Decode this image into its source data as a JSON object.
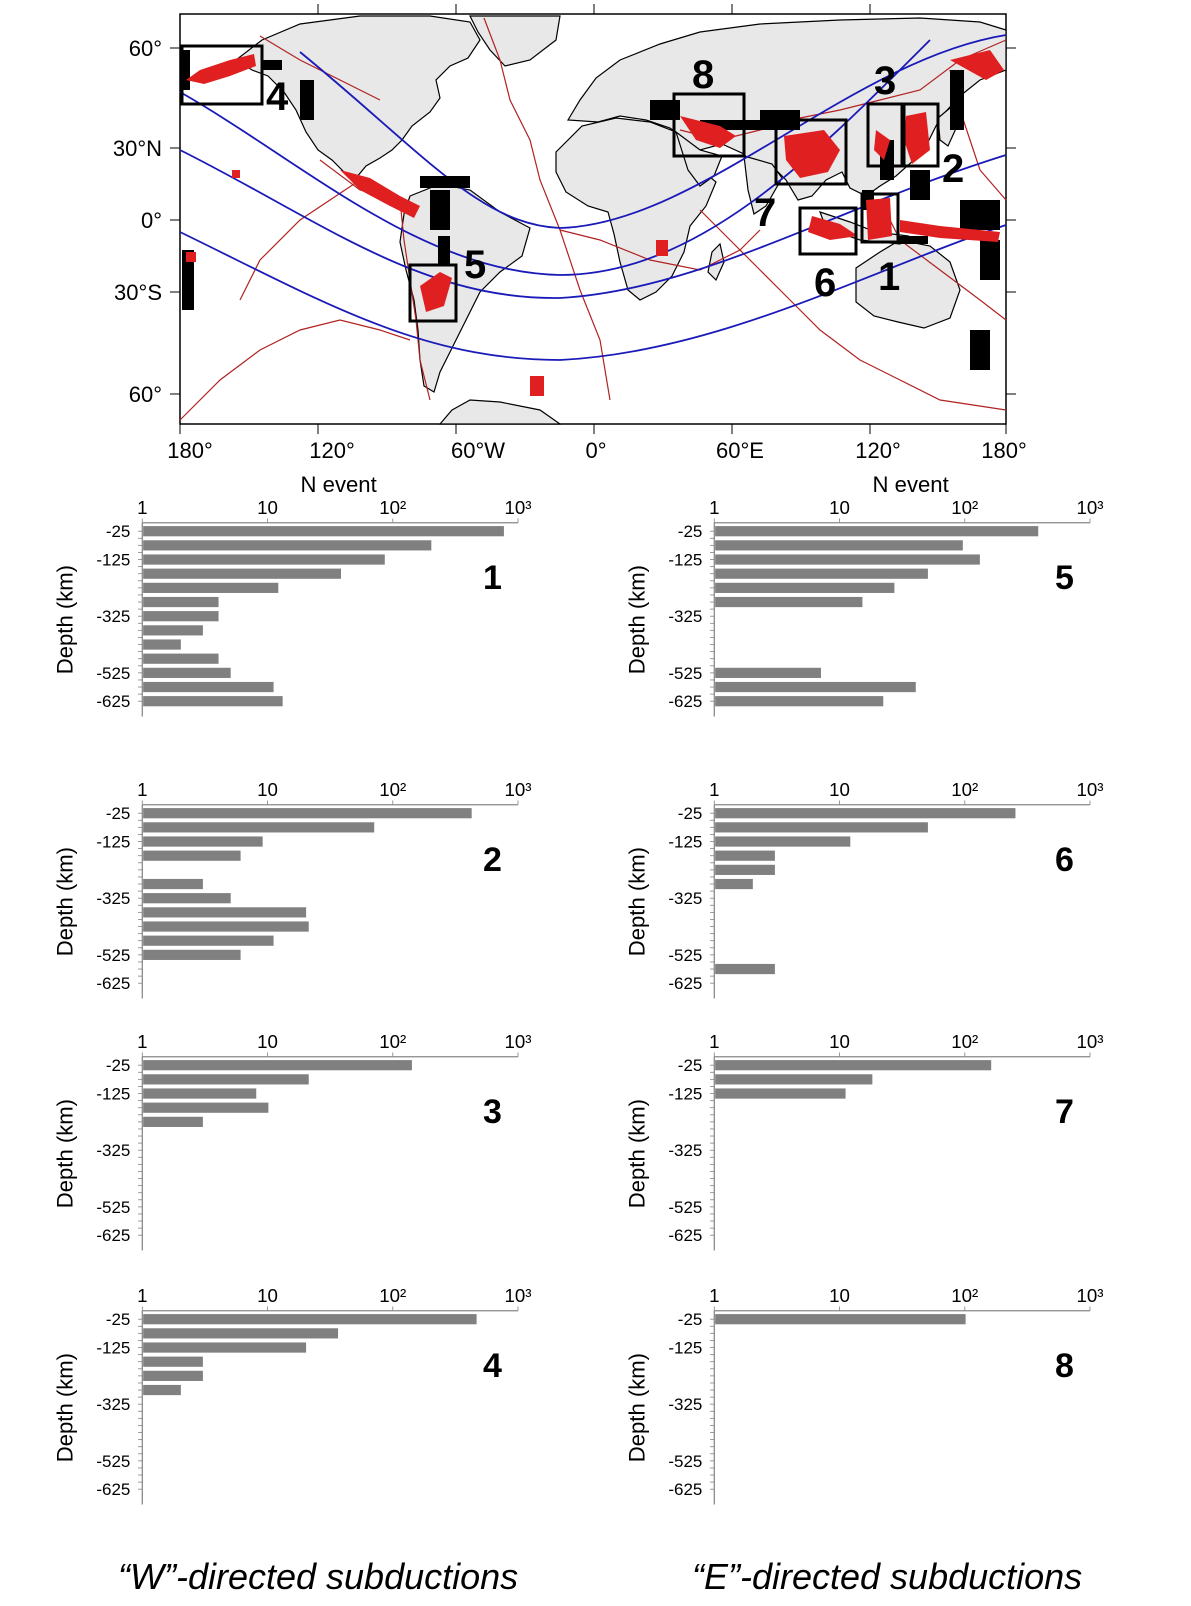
{
  "map": {
    "lon_ticks": [
      "180°",
      "120°",
      "60°W",
      "0°",
      "60°E",
      "120°",
      "180°"
    ],
    "lat_ticks": [
      "60°",
      "30°N",
      "0°",
      "30°S",
      "60°"
    ],
    "region_labels": [
      "1",
      "2",
      "3",
      "4",
      "5",
      "6",
      "7",
      "8"
    ],
    "colors": {
      "land": "#e8e8e8",
      "coastline": "#000000",
      "plate_boundary": "#b22222",
      "seismicity_deep": "#e02020",
      "seismicity_shallow": "#000000",
      "tidal_lines": "#1a1ab8"
    }
  },
  "column_titles": {
    "left": "“W”-directed subductions",
    "right": "“E”-directed subductions"
  },
  "chart_data": [
    {
      "type": "bar",
      "orientation": "horizontal",
      "xscale": "log",
      "xlim": [
        1,
        1000
      ],
      "xlabel": "N event",
      "ylabel": "Depth (km)",
      "label": "1",
      "direction": "W",
      "x_ticks": [
        "1",
        "10",
        "10²",
        "10³"
      ],
      "y_ticks": [
        "-25",
        "-125",
        "-325",
        "-525",
        "-625"
      ],
      "depths": [
        -25,
        -75,
        -125,
        -175,
        -225,
        -275,
        -325,
        -375,
        -425,
        -475,
        -525,
        -575,
        -625
      ],
      "values": [
        760,
        200,
        85,
        38,
        12,
        4,
        4,
        3,
        2,
        4,
        5,
        11,
        13
      ]
    },
    {
      "type": "bar",
      "orientation": "horizontal",
      "xscale": "log",
      "xlim": [
        1,
        1000
      ],
      "xlabel": "N event",
      "ylabel": "Depth (km)",
      "label": "5",
      "direction": "E",
      "x_ticks": [
        "1",
        "10",
        "10²",
        "10³"
      ],
      "y_ticks": [
        "-25",
        "-125",
        "-325",
        "-525",
        "-625"
      ],
      "depths": [
        -25,
        -75,
        -125,
        -175,
        -225,
        -275,
        -325,
        -375,
        -425,
        -475,
        -525,
        -575,
        -625
      ],
      "values": [
        380,
        95,
        130,
        50,
        27,
        15,
        0,
        0,
        0,
        0,
        7,
        40,
        22
      ]
    },
    {
      "type": "bar",
      "orientation": "horizontal",
      "xscale": "log",
      "xlim": [
        1,
        1000
      ],
      "xlabel": "",
      "ylabel": "Depth (km)",
      "label": "2",
      "direction": "W",
      "x_ticks": [
        "1",
        "10",
        "10²",
        "10³"
      ],
      "y_ticks": [
        "-25",
        "-125",
        "-325",
        "-525",
        "-625"
      ],
      "depths": [
        -25,
        -75,
        -125,
        -175,
        -225,
        -275,
        -325,
        -375,
        -425,
        -475,
        -525,
        -575,
        -625
      ],
      "values": [
        420,
        70,
        9,
        6,
        0,
        3,
        5,
        20,
        21,
        11,
        6,
        0,
        0
      ]
    },
    {
      "type": "bar",
      "orientation": "horizontal",
      "xscale": "log",
      "xlim": [
        1,
        1000
      ],
      "xlabel": "",
      "ylabel": "Depth (km)",
      "label": "6",
      "direction": "E",
      "x_ticks": [
        "1",
        "10",
        "10²",
        "10³"
      ],
      "y_ticks": [
        "-25",
        "-125",
        "-325",
        "-525",
        "-625"
      ],
      "depths": [
        -25,
        -75,
        -125,
        -175,
        -225,
        -275,
        -325,
        -375,
        -425,
        -475,
        -525,
        -575,
        -625
      ],
      "values": [
        250,
        50,
        12,
        3,
        3,
        2,
        0,
        0,
        0,
        0,
        0,
        3,
        0
      ]
    },
    {
      "type": "bar",
      "orientation": "horizontal",
      "xscale": "log",
      "xlim": [
        1,
        1000
      ],
      "xlabel": "",
      "ylabel": "Depth (km)",
      "label": "3",
      "direction": "W",
      "x_ticks": [
        "1",
        "10",
        "10²",
        "10³"
      ],
      "y_ticks": [
        "-25",
        "-125",
        "-325",
        "-525",
        "-625"
      ],
      "depths": [
        -25,
        -75,
        -125,
        -175,
        -225,
        -275,
        -325,
        -375,
        -425,
        -475,
        -525,
        -575,
        -625
      ],
      "values": [
        140,
        21,
        8,
        10,
        3,
        0,
        0,
        0,
        0,
        0,
        0,
        0,
        0
      ]
    },
    {
      "type": "bar",
      "orientation": "horizontal",
      "xscale": "log",
      "xlim": [
        1,
        1000
      ],
      "xlabel": "",
      "ylabel": "Depth (km)",
      "label": "7",
      "direction": "E",
      "x_ticks": [
        "1",
        "10",
        "10²",
        "10³"
      ],
      "y_ticks": [
        "-25",
        "-125",
        "-325",
        "-525",
        "-625"
      ],
      "depths": [
        -25,
        -75,
        -125,
        -175,
        -225,
        -275,
        -325,
        -375,
        -425,
        -475,
        -525,
        -575,
        -625
      ],
      "values": [
        160,
        18,
        11,
        0,
        0,
        0,
        0,
        0,
        0,
        0,
        0,
        0,
        0
      ]
    },
    {
      "type": "bar",
      "orientation": "horizontal",
      "xscale": "log",
      "xlim": [
        1,
        1000
      ],
      "xlabel": "",
      "ylabel": "Depth (km)",
      "label": "4",
      "direction": "W",
      "x_ticks": [
        "1",
        "10",
        "10²",
        "10³"
      ],
      "y_ticks": [
        "-25",
        "-125",
        "-325",
        "-525",
        "-625"
      ],
      "depths": [
        -25,
        -75,
        -125,
        -175,
        -225,
        -275,
        -325,
        -375,
        -425,
        -475,
        -525,
        -575,
        -625
      ],
      "values": [
        460,
        36,
        20,
        3,
        3,
        2,
        0,
        0,
        0,
        0,
        0,
        0,
        0
      ]
    },
    {
      "type": "bar",
      "orientation": "horizontal",
      "xscale": "log",
      "xlim": [
        1,
        1000
      ],
      "xlabel": "",
      "ylabel": "Depth (km)",
      "label": "8",
      "direction": "E",
      "x_ticks": [
        "1",
        "10",
        "10²",
        "10³"
      ],
      "y_ticks": [
        "-25",
        "-125",
        "-325",
        "-525",
        "-625"
      ],
      "depths": [
        -25,
        -75,
        -125,
        -175,
        -225,
        -275,
        -325,
        -375,
        -425,
        -475,
        -525,
        -575,
        -625
      ],
      "values": [
        100,
        0,
        0,
        0,
        0,
        0,
        0,
        0,
        0,
        0,
        0,
        0,
        0
      ]
    }
  ]
}
